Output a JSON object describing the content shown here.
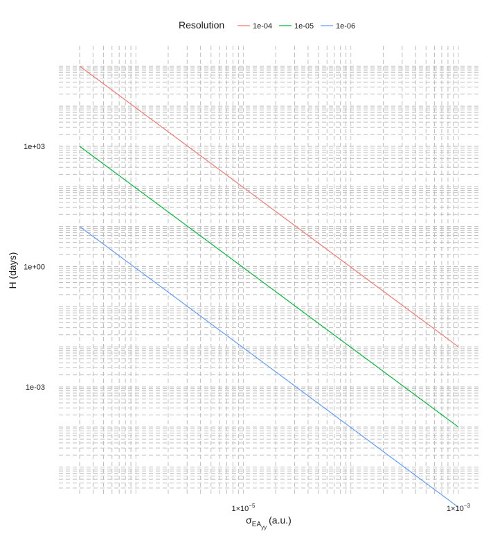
{
  "chart_data": {
    "type": "line",
    "title": "",
    "xlabel": {
      "symbol": "σ",
      "subscript": "EA",
      "subsubscript": "yy",
      "unit": "(a.u.)"
    },
    "ylabel": "H (days)",
    "x_scale": "log",
    "y_scale": "log",
    "xlim": [
      2.2e-07,
      0.0013
    ],
    "ylim": [
      3e-06,
      100000.0
    ],
    "x_ticks": [
      {
        "value": 1e-05,
        "label_base": "1×10",
        "label_exp": "−5"
      },
      {
        "value": 0.001,
        "label_base": "1×10",
        "label_exp": "−3"
      }
    ],
    "y_ticks": [
      {
        "value": 1000.0,
        "label": "1e+03"
      },
      {
        "value": 1.0,
        "label": "1e+00"
      },
      {
        "value": 0.001,
        "label": "1e-03"
      }
    ],
    "grid": true,
    "legend": {
      "title": "Resolution",
      "position": "top",
      "entries": [
        "1e-04",
        "1e-05",
        "1e-06"
      ]
    },
    "series": [
      {
        "name": "1e-04",
        "color": "#F8766D",
        "x": [
          3e-07,
          0.001
        ],
        "y": [
          100000.0,
          0.01
        ]
      },
      {
        "name": "1e-05",
        "color": "#00BA38",
        "x": [
          3e-07,
          0.001
        ],
        "y": [
          1000.0,
          0.0001
        ]
      },
      {
        "name": "1e-06",
        "color": "#619CFF",
        "x": [
          3e-07,
          0.001
        ],
        "y": [
          10.0,
          1e-06
        ]
      }
    ]
  }
}
